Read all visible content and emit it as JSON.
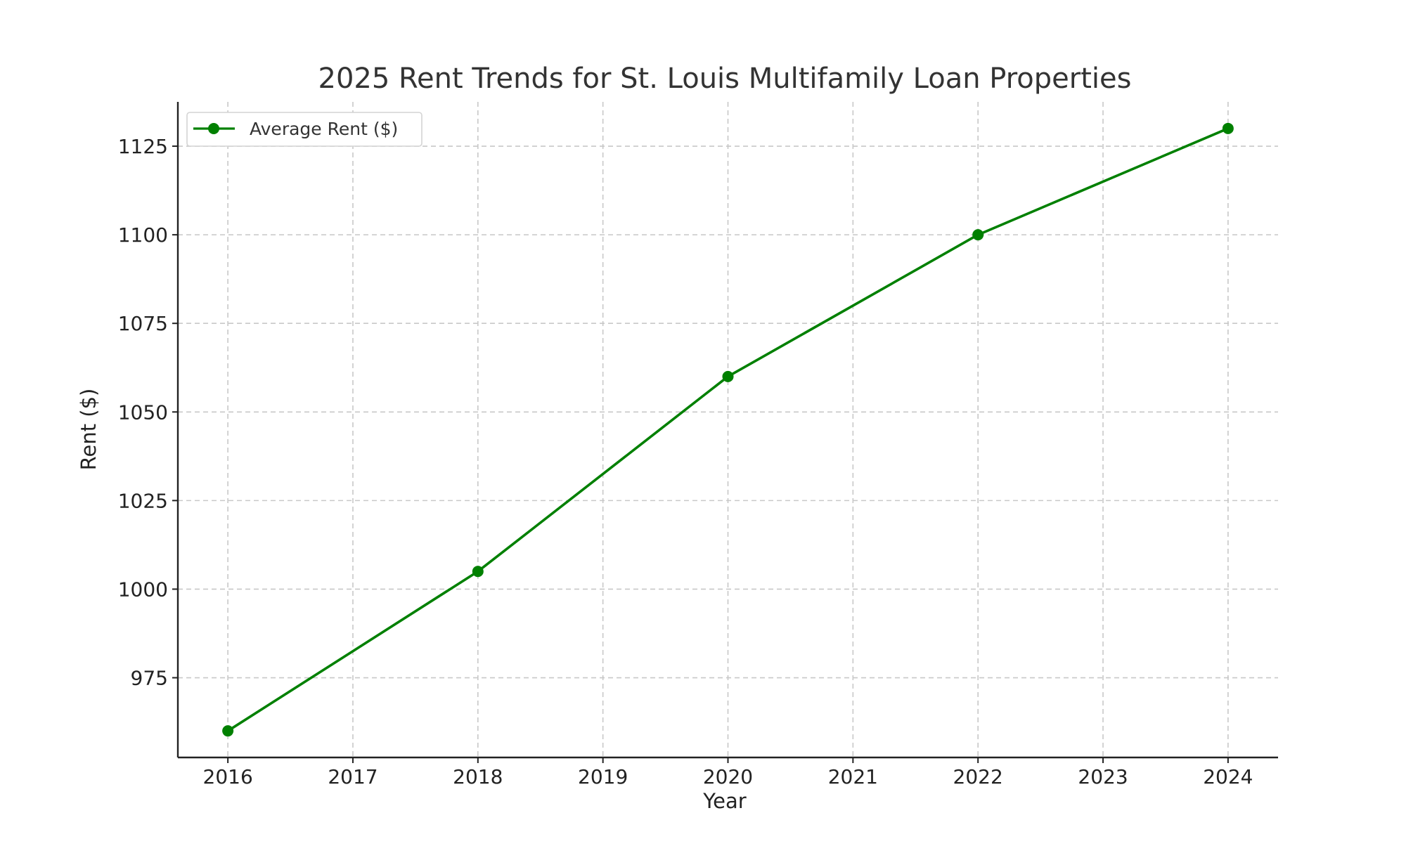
{
  "chart_data": {
    "type": "line",
    "title": "2025 Rent Trends for St. Louis Multifamily Loan Properties",
    "xlabel": "Year",
    "ylabel": "Rent ($)",
    "x": [
      2016,
      2018,
      2020,
      2022,
      2024
    ],
    "series": [
      {
        "name": "Average Rent ($)",
        "values": [
          960,
          1005,
          1060,
          1100,
          1130
        ],
        "color": "#008000",
        "marker": "circle"
      }
    ],
    "x_ticks": [
      "2016",
      "2017",
      "2018",
      "2019",
      "2020",
      "2021",
      "2022",
      "2023",
      "2024"
    ],
    "y_ticks": [
      "975",
      "1000",
      "1025",
      "1050",
      "1075",
      "1100",
      "1125"
    ],
    "xlim": [
      2015.6,
      2024.4
    ],
    "ylim": [
      952.5,
      1137.5
    ],
    "grid": true,
    "legend_position": "top-left"
  }
}
